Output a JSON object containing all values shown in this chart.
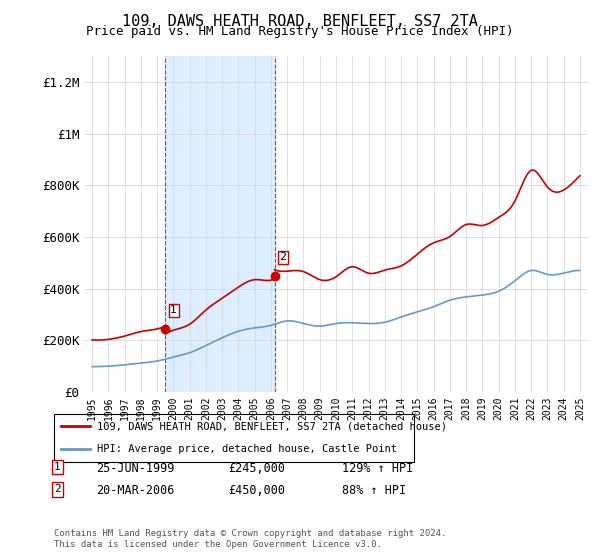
{
  "title": "109, DAWS HEATH ROAD, BENFLEET, SS7 2TA",
  "subtitle": "Price paid vs. HM Land Registry's House Price Index (HPI)",
  "legend_line1": "109, DAWS HEATH ROAD, BENFLEET, SS7 2TA (detached house)",
  "legend_line2": "HPI: Average price, detached house, Castle Point",
  "transaction1_label": "1",
  "transaction1_date": "25-JUN-1999",
  "transaction1_price": "£245,000",
  "transaction1_hpi": "129% ↑ HPI",
  "transaction2_label": "2",
  "transaction2_date": "20-MAR-2006",
  "transaction2_price": "£450,000",
  "transaction2_hpi": "88% ↑ HPI",
  "footnote": "Contains HM Land Registry data © Crown copyright and database right 2024.\nThis data is licensed under the Open Government Licence v3.0.",
  "red_color": "#cc0000",
  "blue_color": "#6699cc",
  "shaded_color": "#ddeeff",
  "marker1_x": 1999.5,
  "marker1_y": 245000,
  "marker2_x": 2006.22,
  "marker2_y": 450000,
  "ylim": [
    0,
    1300000
  ],
  "xlim_left": 1994.5,
  "xlim_right": 2025.5
}
